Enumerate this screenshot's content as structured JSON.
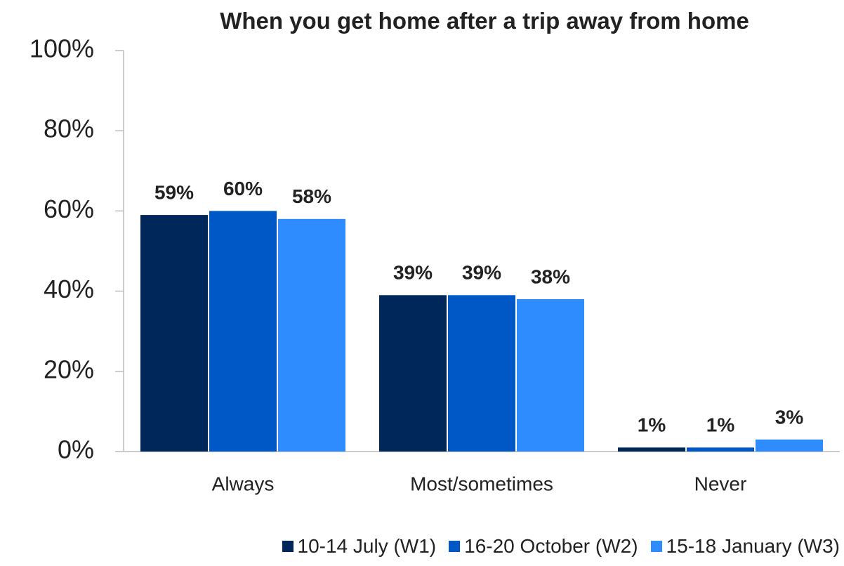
{
  "chart_data": {
    "type": "bar",
    "title": "When you get home after a trip away from home",
    "categories": [
      "Always",
      "Most/sometimes",
      "Never"
    ],
    "series": [
      {
        "name": "10-14 July (W1)",
        "color": "#00275a",
        "values": [
          59,
          39,
          1
        ],
        "value_labels": [
          "59%",
          "39%",
          "1%"
        ]
      },
      {
        "name": "16-20 October (W2)",
        "color": "#0058c6",
        "values": [
          60,
          39,
          1
        ],
        "value_labels": [
          "60%",
          "39%",
          "1%"
        ]
      },
      {
        "name": "15-18 January (W3)",
        "color": "#2e8cff",
        "values": [
          58,
          38,
          3
        ],
        "value_labels": [
          "58%",
          "38%",
          "3%"
        ]
      }
    ],
    "ylim": [
      0,
      100
    ],
    "yticks": [
      {
        "value": 0,
        "label": "0%"
      },
      {
        "value": 20,
        "label": "20%"
      },
      {
        "value": 40,
        "label": "40%"
      },
      {
        "value": 60,
        "label": "60%"
      },
      {
        "value": 80,
        "label": "80%"
      },
      {
        "value": 100,
        "label": "100%"
      }
    ],
    "grid": false,
    "legend": "bottom"
  }
}
